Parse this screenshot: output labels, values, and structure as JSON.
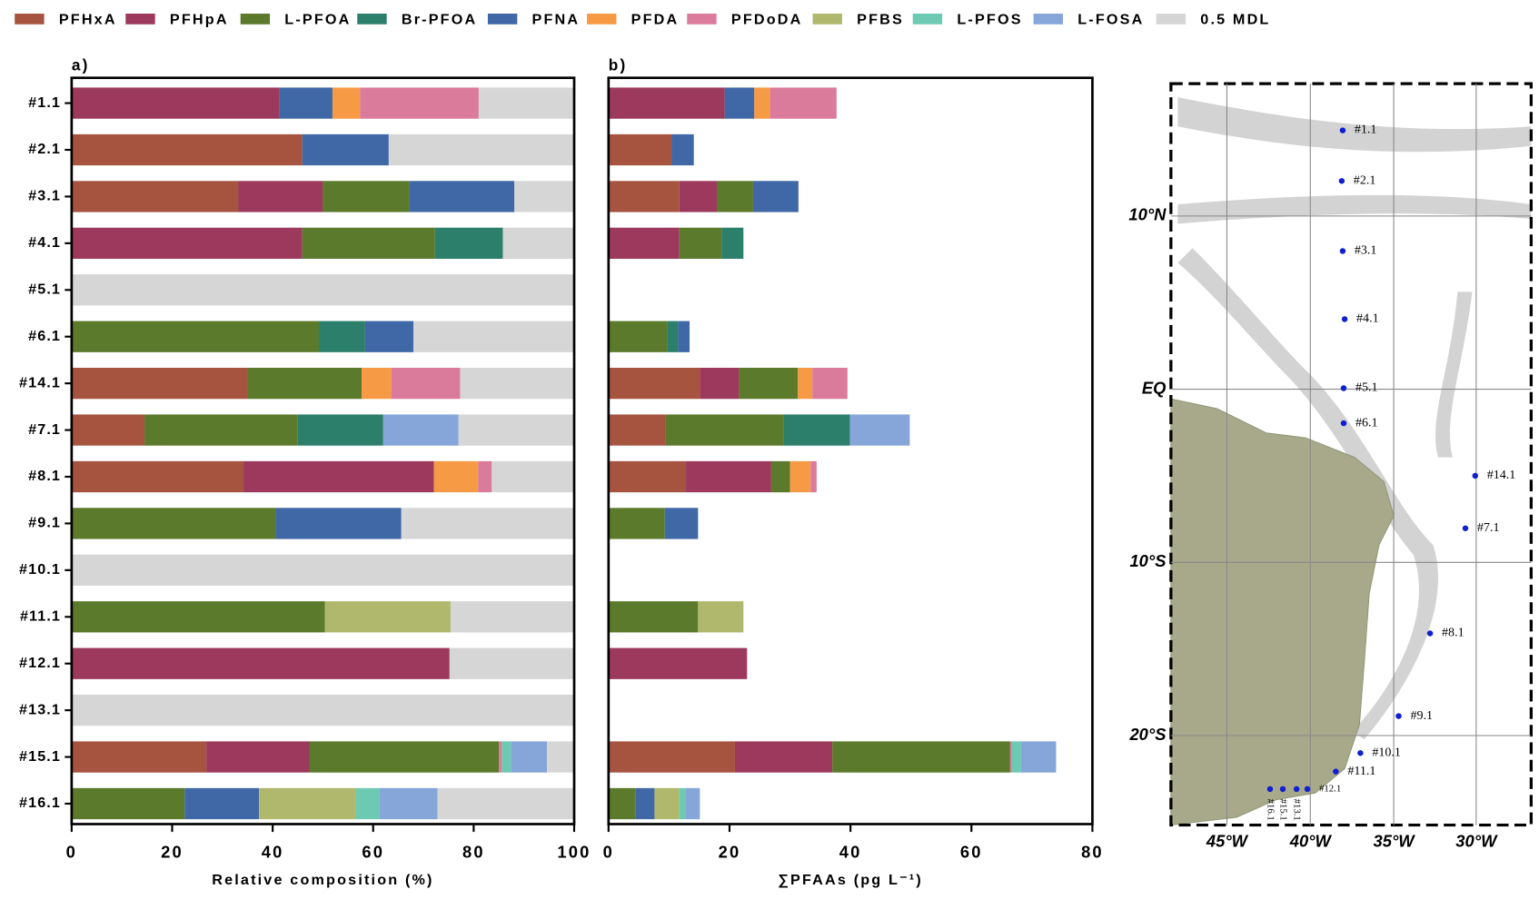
{
  "chart_data": [
    {
      "type": "stacked-barh",
      "label": "a)",
      "xlabel": "Relative composition (%)",
      "categories": [
        "#1.1",
        "#2.1",
        "#3.1",
        "#4.1",
        "#5.1",
        "#6.1",
        "#14.1",
        "#7.1",
        "#8.1",
        "#9.1",
        "#10.1",
        "#11.1",
        "#12.1",
        "#13.1",
        "#15.1",
        "#16.1"
      ],
      "xlim": [
        0,
        100
      ],
      "xticks": [
        0,
        20,
        40,
        60,
        80,
        100
      ],
      "series": [
        {
          "name": "PFHxA",
          "color": "#a65440",
          "values": [
            0,
            45.9,
            33.2,
            0,
            0,
            0,
            35.0,
            14.5,
            34.2,
            0,
            0,
            0,
            0,
            0,
            26.8,
            0
          ]
        },
        {
          "name": "PFHpA",
          "color": "#9c395d",
          "values": [
            41.4,
            0,
            16.8,
            45.9,
            0,
            0,
            0,
            0,
            37.9,
            0,
            0,
            0,
            75.2,
            0,
            20.5,
            0
          ]
        },
        {
          "name": "L-PFOA",
          "color": "#5b7a2c",
          "values": [
            0,
            0,
            17.2,
            26.4,
            0,
            49.2,
            22.7,
            30.5,
            0,
            40.6,
            0,
            50.4,
            0,
            0,
            37.7,
            22.5
          ]
        },
        {
          "name": "Br-PFOA",
          "color": "#2c7f6a",
          "values": [
            0,
            0,
            0,
            13.5,
            0,
            9.2,
            0,
            17.0,
            0,
            0,
            0,
            0,
            0,
            0,
            0,
            0
          ]
        },
        {
          "name": "PFNA",
          "color": "#4068a6",
          "values": [
            10.5,
            17.2,
            20.9,
            0,
            0,
            9.6,
            0,
            0,
            0,
            25.0,
            0,
            0,
            0,
            0,
            0,
            14.8
          ]
        },
        {
          "name": "PFDA",
          "color": "#f79a46",
          "values": [
            5.5,
            0,
            0,
            0,
            0,
            0,
            5.9,
            0,
            8.8,
            0,
            0,
            0,
            0,
            0,
            0,
            0
          ]
        },
        {
          "name": "PFDoDA",
          "color": "#db7b9b",
          "values": [
            23.6,
            0,
            0,
            0,
            0,
            0,
            13.7,
            0,
            2.7,
            0,
            0,
            0,
            0,
            0,
            0.6,
            0
          ]
        },
        {
          "name": "PFBS",
          "color": "#afb86c",
          "values": [
            0,
            0,
            0,
            0,
            0,
            0,
            0,
            0,
            0,
            0,
            0,
            25.0,
            0,
            0,
            0,
            19.3
          ]
        },
        {
          "name": "L-PFOS",
          "color": "#6dcab2",
          "values": [
            0,
            0,
            0,
            0,
            0,
            0,
            0,
            0,
            0,
            0,
            0,
            0,
            0,
            0,
            1.8,
            4.7
          ]
        },
        {
          "name": "L-FOSA",
          "color": "#86a6da",
          "values": [
            0,
            0,
            0,
            0,
            0,
            0,
            0,
            15.0,
            0,
            0,
            0,
            0,
            0,
            0,
            7.2,
            11.5
          ]
        },
        {
          "name": "0.5 MDL",
          "color": "#d6d6d6",
          "values": [
            19.0,
            36.9,
            11.9,
            14.2,
            100,
            32.0,
            22.7,
            23.0,
            16.4,
            34.4,
            100,
            24.6,
            24.8,
            100,
            5.4,
            27.2
          ]
        }
      ]
    },
    {
      "type": "stacked-barh",
      "label": "b)",
      "xlabel": "∑PFAAs (pg L⁻¹)",
      "xlim": [
        0,
        80
      ],
      "xticks": [
        0,
        20,
        40,
        60,
        80
      ],
      "series": [
        {
          "color": "#a65440",
          "values": [
            0,
            10.4,
            11.7,
            0,
            0,
            0,
            15.1,
            9.4,
            12.8,
            0,
            0,
            0,
            0,
            0,
            20.9,
            0
          ]
        },
        {
          "color": "#9c395d",
          "values": [
            19.2,
            0,
            6.2,
            11.7,
            0,
            0,
            6.5,
            0,
            14.1,
            0,
            0,
            0,
            22.9,
            0,
            16.1,
            0
          ]
        },
        {
          "color": "#5b7a2c",
          "values": [
            0,
            0,
            6.0,
            7.0,
            0,
            9.7,
            9.7,
            19.6,
            3.1,
            9.3,
            0,
            14.8,
            0,
            0,
            29.4,
            4.5
          ]
        },
        {
          "color": "#2c7f6a",
          "values": [
            0,
            0,
            0,
            3.6,
            0,
            1.8,
            0,
            10.9,
            0,
            0,
            0,
            0,
            0,
            0,
            0,
            0
          ]
        },
        {
          "color": "#4068a6",
          "values": [
            4.9,
            3.7,
            7.5,
            0,
            0,
            1.9,
            0,
            0,
            0,
            5.5,
            0,
            0,
            0,
            0,
            0,
            3.1
          ]
        },
        {
          "color": "#f79a46",
          "values": [
            2.6,
            0,
            0,
            0,
            0,
            0,
            2.4,
            0,
            3.4,
            0,
            0,
            0,
            0,
            0,
            0,
            0
          ]
        },
        {
          "color": "#db7b9b",
          "values": [
            11.0,
            0,
            0,
            0,
            0,
            0,
            5.8,
            0,
            1.0,
            0,
            0,
            0,
            0,
            0,
            0.3,
            0
          ]
        },
        {
          "color": "#afb86c",
          "values": [
            0,
            0,
            0,
            0,
            0,
            0,
            0,
            0,
            0,
            0,
            0,
            7.5,
            0,
            0,
            0,
            4.1
          ]
        },
        {
          "color": "#6dcab2",
          "values": [
            0,
            0,
            0,
            0,
            0,
            0,
            0,
            0,
            0,
            0,
            0,
            0,
            0,
            0,
            1.5,
            1.0
          ]
        },
        {
          "color": "#86a6da",
          "values": [
            0,
            0,
            0,
            0,
            0,
            0,
            0,
            9.9,
            0,
            0,
            0,
            0,
            0,
            0,
            5.8,
            2.4
          ]
        }
      ]
    }
  ],
  "map": {
    "lat_labels": [
      "10°N",
      "EQ",
      "10°S",
      "20°S"
    ],
    "lon_labels": [
      "45°W",
      "40°W",
      "35°W",
      "30°W"
    ],
    "stations": [
      "#1.1",
      "#2.1",
      "#3.1",
      "#4.1",
      "#5.1",
      "#6.1",
      "#14.1",
      "#7.1",
      "#8.1",
      "#9.1",
      "#10.1",
      "#11.1",
      "#12.1",
      "#13.1",
      "#15.1",
      "#16.1"
    ]
  }
}
